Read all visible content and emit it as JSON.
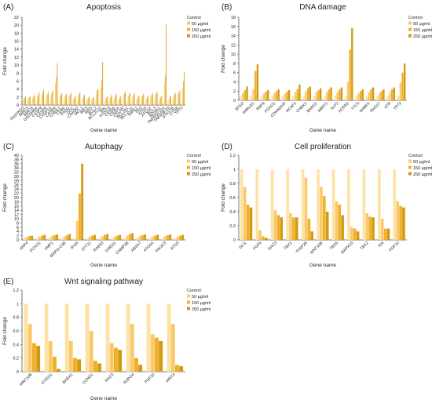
{
  "legend_labels": [
    "Control",
    "50 µg/ml",
    "150  µg/ml",
    "250 µg/ml"
  ],
  "colors": {
    "Control": "#fde2a6",
    "50 µg/ml": "#f9c96a",
    "150  µg/ml": "#eeb02a",
    "250 µg/ml": "#d29a12",
    "axis": "#555555",
    "grid": "#d9d9d9"
  },
  "chart_data": [
    {
      "panel": "(A)",
      "type": "bar",
      "title": "Apoptosis",
      "xlabel": "Gene name",
      "ylabel": "Fold change",
      "ylim": [
        0,
        22
      ],
      "yticks": [
        0,
        2,
        4,
        6,
        8,
        10,
        12,
        14,
        16,
        18,
        20,
        22
      ],
      "grid": false,
      "legend": "top-right",
      "categories": [
        "FASTKD3",
        "BIRC3",
        "BIRC8",
        "GADD45A",
        "CASP8",
        "CASP6",
        "CASP10",
        "CASP9",
        "CHEK1",
        "CD40",
        "FADD",
        "DCC",
        "CRADD",
        "MCL1",
        "IRF3",
        "IRF5",
        "BCL2",
        "BCL2L10",
        "BIK",
        "FOXO3",
        "CIDEB",
        "CIDEA",
        "CFLAR",
        "BCL2A1",
        "BCL2L11",
        "RIPK1",
        "FAS",
        "ATG5",
        "ATG12",
        "BCL3",
        "NOXA1",
        "TNFRSF10A",
        "TNFRSF25",
        "STK17B",
        "CTSB",
        "TP73"
      ],
      "xtick_labels": [
        "FASTKD3",
        "BIRC3",
        "BIRC8",
        "GADD45A",
        "CASP8",
        "CASP6",
        "CASP10",
        "CASP9",
        "CHEK1",
        "CD40",
        "FADD",
        "DCC",
        "CRADD",
        "MCL1",
        "IRF3",
        "IRF5",
        "BCL2",
        "BCL2L10",
        "BIK",
        "FOXO3",
        "CIDEB",
        "CIDEA",
        "CFLAR",
        "BCL2A1",
        "BCL2L11",
        "RIPK1",
        "FAS",
        "ATG5",
        "ATG12",
        "BCL3",
        "NOXA1",
        "TNFRSF10A",
        "TNFRSF25",
        "STK17B",
        "CTSB",
        "TP73"
      ],
      "series": [
        {
          "name": "Control",
          "values": [
            1,
            1,
            1,
            1,
            1,
            1,
            1,
            1,
            1,
            1,
            1,
            1,
            1,
            1,
            1,
            1,
            1,
            1,
            1,
            1,
            1,
            1,
            1,
            1,
            1,
            1,
            1,
            1,
            1,
            1,
            1,
            1,
            1,
            1,
            1,
            1
          ]
        },
        {
          "name": "50 µg/ml",
          "values": [
            1.6,
            1.7,
            1.8,
            2.2,
            2.6,
            2.4,
            2.6,
            5.5,
            2.2,
            2.0,
            2.2,
            1.6,
            2.4,
            1.8,
            1.4,
            1.4,
            3.2,
            4.2,
            1.6,
            1.8,
            1.8,
            1.6,
            2.6,
            2.2,
            2.2,
            1.6,
            2.0,
            1.6,
            2.2,
            2.6,
            1.6,
            5.5,
            1.6,
            2.2,
            2.8,
            4.2
          ]
        },
        {
          "name": "150  µg/ml",
          "values": [
            1.9,
            2.0,
            2.2,
            2.6,
            3.2,
            2.8,
            3.0,
            7.0,
            2.6,
            2.4,
            2.6,
            1.9,
            2.8,
            2.2,
            1.8,
            1.7,
            3.8,
            6.2,
            1.9,
            2.2,
            2.4,
            1.9,
            3.0,
            2.7,
            2.6,
            2.0,
            2.4,
            2.0,
            2.6,
            2.9,
            2.0,
            7.5,
            2.0,
            2.6,
            3.2,
            6.0
          ]
        },
        {
          "name": "250 µg/ml",
          "values": [
            2.1,
            2.2,
            2.5,
            3.2,
            3.8,
            3.2,
            3.6,
            10.5,
            3.0,
            2.8,
            3.0,
            2.2,
            3.2,
            2.6,
            2.2,
            2.0,
            3.9,
            10.8,
            2.2,
            2.6,
            2.8,
            2.2,
            3.4,
            3.0,
            3.0,
            2.4,
            2.8,
            2.4,
            3.0,
            3.3,
            2.4,
            20.2,
            2.4,
            3.0,
            3.6,
            8.2
          ]
        }
      ]
    },
    {
      "panel": "(B)",
      "type": "bar",
      "title": "DNA damage",
      "xlabel": "Gene name",
      "ylabel": "Fold change",
      "ylim": [
        0,
        18
      ],
      "yticks": [
        0,
        2,
        4,
        6,
        8,
        10,
        12,
        14,
        16,
        18
      ],
      "grid": false,
      "legend": "top-right",
      "categories": [
        "BTG2",
        "ANKLE1",
        "RNF8",
        "FOXO1",
        "CDKN2AIP",
        "RCAF1",
        "CHEK1",
        "BARD1",
        "ABRT1",
        "SLF2",
        "ACER2",
        "TTC5",
        "NABP1",
        "RAD17",
        "ATR",
        "TP73"
      ],
      "xtick_labels": [
        "BTG2",
        "ANKLE1",
        "RNF8",
        "FOXO1",
        "CDKN2AIP",
        "RCAF1",
        "CHEK1",
        "BARD1",
        "ABRT1",
        "SLF2",
        "ACER2",
        "TTC5",
        "NABP1",
        "RAD17",
        "ATR",
        "TP73"
      ],
      "series": [
        {
          "name": "Control",
          "values": [
            1,
            1,
            1,
            1,
            1,
            1,
            1,
            1,
            1,
            1,
            1,
            1,
            1,
            1,
            1,
            1
          ]
        },
        {
          "name": "50 µg/ml",
          "values": [
            1.6,
            2.5,
            1.5,
            1.6,
            1.5,
            1.8,
            2.0,
            1.8,
            1.8,
            1.8,
            4.0,
            1.6,
            1.8,
            1.6,
            1.8,
            3.8
          ]
        },
        {
          "name": "150  µg/ml",
          "values": [
            2.2,
            6.4,
            1.9,
            2.0,
            1.9,
            2.4,
            2.6,
            2.2,
            2.4,
            2.4,
            11.0,
            2.0,
            2.4,
            2.0,
            2.4,
            6.0
          ]
        },
        {
          "name": "250 µg/ml",
          "values": [
            3.0,
            7.8,
            2.2,
            2.4,
            2.2,
            3.4,
            3.0,
            2.6,
            2.8,
            2.8,
            15.6,
            2.4,
            2.8,
            2.4,
            2.8,
            8.0
          ]
        }
      ]
    },
    {
      "panel": "(C)",
      "type": "bar",
      "title": "Autophagy",
      "xlabel": "Gene name",
      "ylabel": "Fold change",
      "ylim": [
        0,
        40
      ],
      "yticks": [
        0,
        2,
        4,
        6,
        8,
        10,
        12,
        14,
        16,
        18,
        20,
        22,
        24,
        26,
        28,
        30,
        32,
        34,
        36,
        38,
        40
      ],
      "grid": false,
      "legend": "top-right",
      "categories": [
        "SRP4",
        "FOXO1",
        "VMP1",
        "MAP1LC3B",
        "IFI16",
        "STT11",
        "RAB33",
        "DRED1",
        "CHMP2B",
        "ABSA7",
        "ATG4A",
        "PIK3C3",
        "ATG5"
      ],
      "xtick_labels": [
        "SRP4",
        "FOXO1",
        "VMP1",
        "MAP1LC3B",
        "IFI16",
        "STT11",
        "RAB33",
        "DRED1",
        "CHMP2B",
        "ABSA7",
        "ATG4A",
        "PIK3C3",
        "ATG5"
      ],
      "series": [
        {
          "name": "Control",
          "values": [
            1,
            1,
            1,
            1,
            1,
            1,
            1,
            1,
            1,
            1,
            1,
            1,
            1
          ]
        },
        {
          "name": "50 µg/ml",
          "values": [
            1.5,
            1.6,
            1.8,
            1.8,
            9.0,
            1.6,
            1.8,
            1.6,
            2.2,
            1.8,
            1.6,
            1.8,
            1.6
          ]
        },
        {
          "name": "150  µg/ml",
          "values": [
            1.8,
            2.0,
            2.2,
            2.2,
            22.0,
            2.0,
            2.4,
            2.0,
            2.8,
            2.2,
            2.0,
            2.2,
            2.0
          ]
        },
        {
          "name": "250 µg/ml",
          "values": [
            2.0,
            2.4,
            2.6,
            2.8,
            36.0,
            2.4,
            2.8,
            2.4,
            3.2,
            2.6,
            2.4,
            2.6,
            2.4
          ]
        }
      ]
    },
    {
      "panel": "(D)",
      "type": "bar",
      "title": "Cell proliferation",
      "xlabel": "Gene name",
      "ylabel": "Fold change",
      "ylim": [
        0,
        1.2
      ],
      "yticks": [
        0,
        0.2,
        0.4,
        0.6,
        0.8,
        1,
        1.2
      ],
      "grid": false,
      "legend": "top-right",
      "categories": [
        "GLI1",
        "FGF6",
        "RAC3",
        "TBX1",
        "TFAP2B",
        "WNT10B",
        "TBX6",
        "MAPK15",
        "TBX2",
        "ID4",
        "FGF10"
      ],
      "xtick_labels": [
        "GLI1",
        "FGF6",
        "RAC3",
        "TBX1",
        "TFAP2B",
        "WNT10B",
        "TBX6",
        "MAPK15",
        "TBX2",
        "ID4",
        "FGF10"
      ],
      "series": [
        {
          "name": "Control",
          "values": [
            1,
            1,
            1,
            1,
            1,
            1,
            1,
            1,
            1,
            1,
            1
          ]
        },
        {
          "name": "50 µg/ml",
          "values": [
            0.75,
            0.14,
            0.42,
            0.38,
            0.88,
            0.75,
            0.55,
            0.18,
            0.38,
            0.3,
            0.55
          ]
        },
        {
          "name": "150  µg/ml",
          "values": [
            0.5,
            0.05,
            0.35,
            0.32,
            0.3,
            0.62,
            0.5,
            0.16,
            0.33,
            0.16,
            0.48
          ]
        },
        {
          "name": "250 µg/ml",
          "values": [
            0.46,
            0.03,
            0.32,
            0.32,
            0.12,
            0.4,
            0.35,
            0.12,
            0.32,
            0.16,
            0.46
          ]
        }
      ]
    },
    {
      "panel": "(E)",
      "type": "bar",
      "title": "Wnt signaling pathway",
      "xlabel": "Gene name",
      "ylabel": "Fold change",
      "ylim": [
        0,
        1.2
      ],
      "yticks": [
        0,
        0.2,
        0.4,
        0.6,
        0.8,
        1,
        1.2
      ],
      "grid": false,
      "legend": "top-right",
      "categories": [
        "WNT10B",
        "CITED1",
        "BARX1",
        "CCND1",
        "RAC3",
        "RSPO4",
        "FGF10",
        "WNT4"
      ],
      "xtick_labels": [
        "WNT10B",
        "CITED1",
        "BARX1",
        "CCND1",
        "RAC3",
        "RSPO4",
        "FGF10",
        "WNT4"
      ],
      "series": [
        {
          "name": "Control",
          "values": [
            1,
            1,
            1,
            1,
            1,
            1,
            1,
            1
          ]
        },
        {
          "name": "50 µg/ml",
          "values": [
            0.7,
            0.45,
            0.45,
            0.6,
            0.42,
            0.7,
            0.55,
            0.7
          ]
        },
        {
          "name": "150  µg/ml",
          "values": [
            0.42,
            0.22,
            0.2,
            0.16,
            0.35,
            0.2,
            0.5,
            0.1
          ]
        },
        {
          "name": "250 µg/ml",
          "values": [
            0.38,
            0.04,
            0.18,
            0.12,
            0.32,
            0.1,
            0.45,
            0.08
          ]
        }
      ]
    }
  ]
}
